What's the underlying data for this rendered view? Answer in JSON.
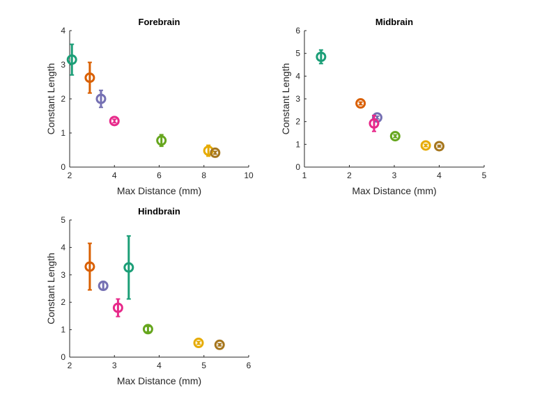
{
  "chart_data": [
    {
      "type": "scatter",
      "title": "Forebrain",
      "xlabel": "Max Distance (mm)",
      "ylabel": "Constant Length",
      "xlim": [
        2,
        10
      ],
      "ylim": [
        0,
        4
      ],
      "xticks": [
        "2",
        "4",
        "6",
        "8",
        "10"
      ],
      "yticks": [
        "0",
        "1",
        "2",
        "3",
        "4"
      ],
      "points": [
        {
          "x": 2.1,
          "y": 3.15,
          "err": 0.45,
          "color": "#1b9e77"
        },
        {
          "x": 2.9,
          "y": 2.62,
          "err": 0.45,
          "color": "#d95f02"
        },
        {
          "x": 3.4,
          "y": 2.0,
          "err": 0.25,
          "color": "#7570b3"
        },
        {
          "x": 4.0,
          "y": 1.35,
          "err": 0.05,
          "color": "#e7298a"
        },
        {
          "x": 6.1,
          "y": 0.78,
          "err": 0.17,
          "color": "#66a61e"
        },
        {
          "x": 8.2,
          "y": 0.48,
          "err": 0.16,
          "color": "#e6ab02"
        },
        {
          "x": 8.5,
          "y": 0.42,
          "err": 0.04,
          "color": "#a6761d"
        }
      ]
    },
    {
      "type": "scatter",
      "title": "Midbrain",
      "xlabel": "Max Distance (mm)",
      "ylabel": "Constant Length",
      "xlim": [
        1,
        5
      ],
      "ylim": [
        0,
        6
      ],
      "xticks": [
        "1",
        "2",
        "3",
        "4",
        "5"
      ],
      "yticks": [
        "0",
        "1",
        "2",
        "3",
        "4",
        "5",
        "6"
      ],
      "points": [
        {
          "x": 1.37,
          "y": 4.85,
          "err": 0.3,
          "color": "#1b9e77"
        },
        {
          "x": 2.25,
          "y": 2.8,
          "err": 0.06,
          "color": "#d95f02"
        },
        {
          "x": 2.62,
          "y": 2.18,
          "err": 0.06,
          "color": "#7570b3"
        },
        {
          "x": 2.55,
          "y": 1.92,
          "err": 0.35,
          "color": "#e7298a"
        },
        {
          "x": 3.02,
          "y": 1.36,
          "err": 0.06,
          "color": "#66a61e"
        },
        {
          "x": 3.7,
          "y": 0.95,
          "err": 0.05,
          "color": "#e6ab02"
        },
        {
          "x": 4.0,
          "y": 0.92,
          "err": 0.04,
          "color": "#a6761d"
        }
      ]
    },
    {
      "type": "scatter",
      "title": "Hindbrain",
      "xlabel": "Max Distance (mm)",
      "ylabel": "Constant Length",
      "xlim": [
        2,
        6
      ],
      "ylim": [
        0,
        5
      ],
      "xticks": [
        "2",
        "3",
        "4",
        "5",
        "6"
      ],
      "yticks": [
        "0",
        "1",
        "2",
        "3",
        "4",
        "5"
      ],
      "points": [
        {
          "x": 3.32,
          "y": 3.27,
          "err": 1.15,
          "color": "#1b9e77"
        },
        {
          "x": 2.45,
          "y": 3.3,
          "err": 0.85,
          "color": "#d95f02"
        },
        {
          "x": 2.75,
          "y": 2.6,
          "err": 0.15,
          "color": "#7570b3"
        },
        {
          "x": 3.08,
          "y": 1.8,
          "err": 0.32,
          "color": "#e7298a"
        },
        {
          "x": 3.75,
          "y": 1.02,
          "err": 0.1,
          "color": "#66a61e"
        },
        {
          "x": 4.88,
          "y": 0.52,
          "err": 0.05,
          "color": "#e6ab02"
        },
        {
          "x": 5.35,
          "y": 0.45,
          "err": 0.04,
          "color": "#a6761d"
        }
      ]
    }
  ]
}
